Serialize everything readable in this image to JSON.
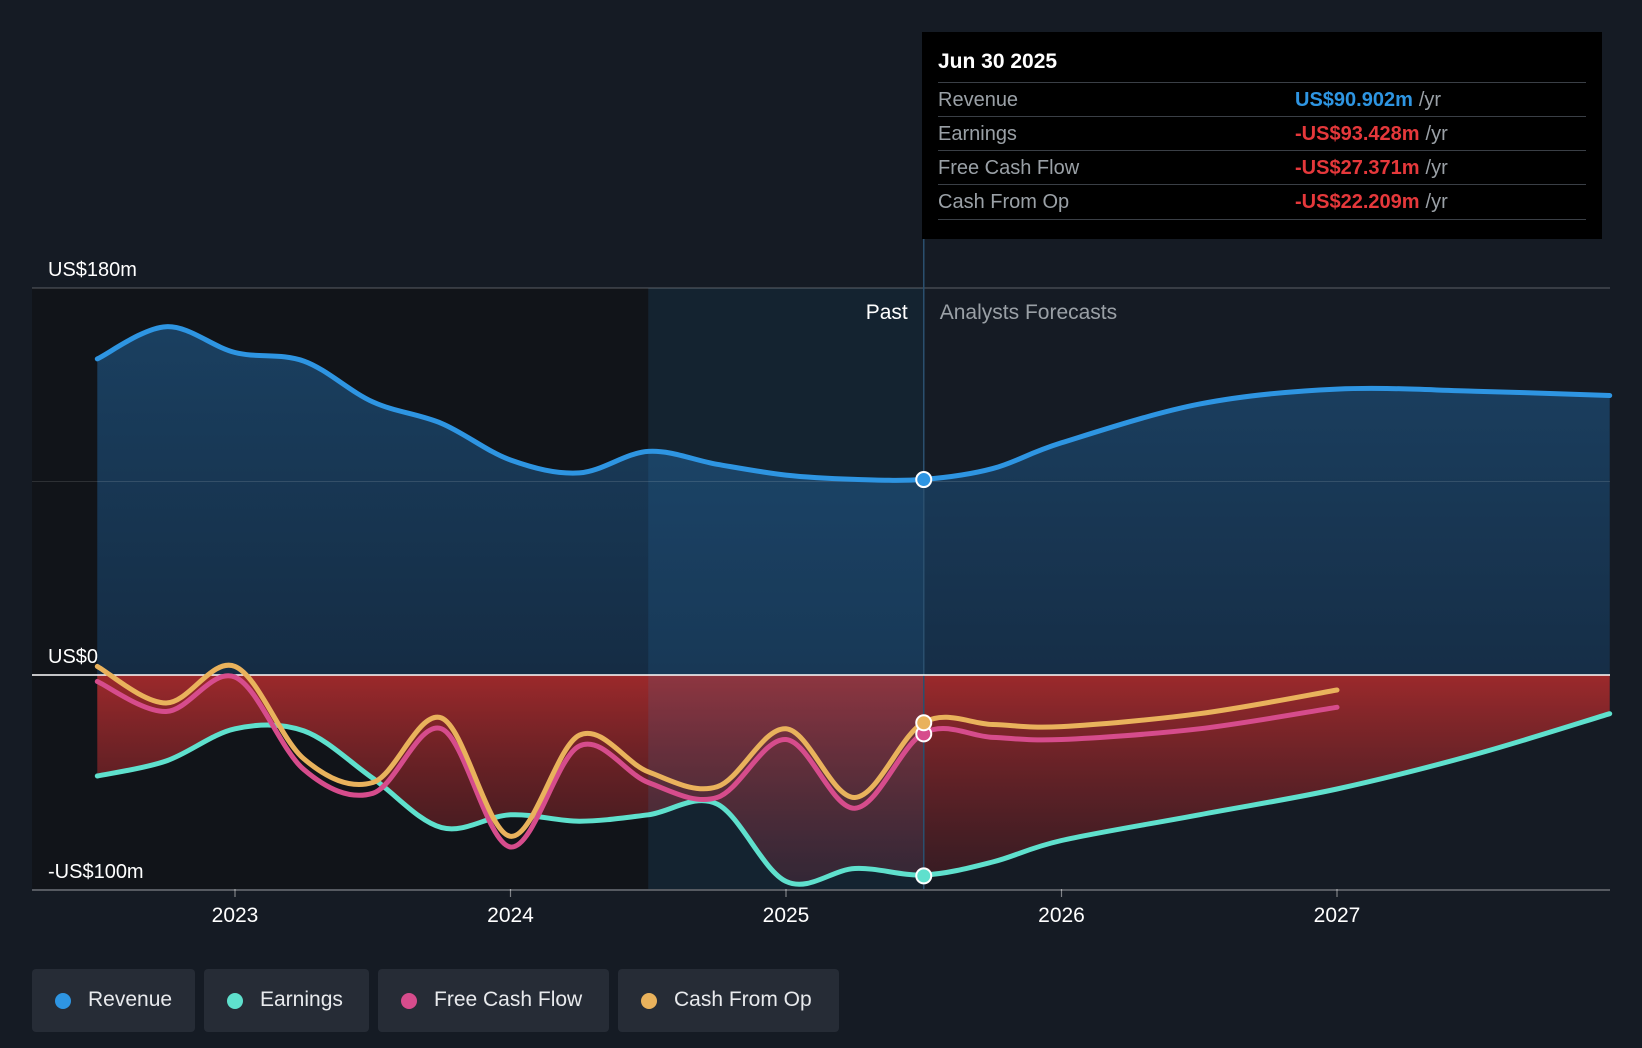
{
  "tooltip": {
    "date": "Jun 30 2025",
    "unit": "/yr",
    "rows": [
      {
        "label": "Revenue",
        "value": "US$90.902m",
        "color": "#2e95e2"
      },
      {
        "label": "Earnings",
        "value": "-US$93.428m",
        "color": "#e5383b"
      },
      {
        "label": "Free Cash Flow",
        "value": "-US$27.371m",
        "color": "#e5383b"
      },
      {
        "label": "Cash From Op",
        "value": "-US$22.209m",
        "color": "#e5383b"
      }
    ]
  },
  "legend": [
    {
      "label": "Revenue",
      "color": "#2e95e2"
    },
    {
      "label": "Earnings",
      "color": "#5fe0cd"
    },
    {
      "label": "Free Cash Flow",
      "color": "#d64c8c"
    },
    {
      "label": "Cash From Op",
      "color": "#e9b25c"
    }
  ],
  "chart_data": {
    "type": "line",
    "y_tick_labels": [
      "US$180m",
      "US$0",
      "-US$100m"
    ],
    "y_ticks": [
      180,
      0,
      -100
    ],
    "ylim": [
      -100,
      180
    ],
    "x_tick_labels": [
      "2023",
      "2024",
      "2025",
      "2026",
      "2027"
    ],
    "x_ticks": [
      2023,
      2024,
      2025,
      2026,
      2027
    ],
    "xlim": [
      2022.27,
      2027.99
    ],
    "past_label": "Past",
    "forecast_label": "Analysts Forecasts",
    "divider_x": 2025.5,
    "highlight_start_x": 2024.5,
    "grid": true,
    "series": [
      {
        "name": "Revenue",
        "color": "#2e95e2",
        "x": [
          2022.5,
          2022.75,
          2023.0,
          2023.25,
          2023.5,
          2023.75,
          2024.0,
          2024.25,
          2024.5,
          2024.75,
          2025.0,
          2025.25,
          2025.5,
          2025.75,
          2026.0,
          2026.5,
          2027.0,
          2027.5,
          2027.99
        ],
        "y": [
          147,
          162,
          150,
          146,
          127,
          117,
          100,
          94,
          104,
          98,
          93,
          91,
          91,
          96,
          108,
          126,
          133,
          132,
          130
        ]
      },
      {
        "name": "Earnings",
        "color": "#5fe0cd",
        "x": [
          2022.5,
          2022.75,
          2023.0,
          2023.25,
          2023.5,
          2023.75,
          2024.0,
          2024.25,
          2024.5,
          2024.75,
          2025.0,
          2025.25,
          2025.5,
          2025.75,
          2026.0,
          2026.5,
          2027.0,
          2027.5,
          2027.99
        ],
        "y": [
          -47,
          -40,
          -25,
          -26,
          -48,
          -71,
          -65,
          -68,
          -65,
          -60,
          -96,
          -90,
          -93,
          -87,
          -77,
          -65,
          -53,
          -37,
          -18
        ]
      },
      {
        "name": "Free Cash Flow",
        "color": "#d64c8c",
        "x": [
          2022.5,
          2022.75,
          2023.0,
          2023.25,
          2023.5,
          2023.75,
          2024.0,
          2024.25,
          2024.5,
          2024.75,
          2025.0,
          2025.25,
          2025.5,
          2025.75,
          2026.0,
          2026.5,
          2027.0
        ],
        "y": [
          -3,
          -17,
          -1,
          -44,
          -55,
          -25,
          -80,
          -33,
          -50,
          -57,
          -30,
          -62,
          -27,
          -29,
          -30,
          -25,
          -15
        ]
      },
      {
        "name": "Cash From Op",
        "color": "#e9b25c",
        "x": [
          2022.5,
          2022.75,
          2023.0,
          2023.25,
          2023.5,
          2023.75,
          2024.0,
          2024.25,
          2024.5,
          2024.75,
          2025.0,
          2025.25,
          2025.5,
          2025.75,
          2026.0,
          2026.5,
          2027.0
        ],
        "y": [
          4,
          -13,
          4,
          -39,
          -50,
          -20,
          -75,
          -28,
          -45,
          -52,
          -25,
          -57,
          -22,
          -23,
          -24,
          -18,
          -7
        ]
      }
    ],
    "highlight_points": [
      {
        "series": "Revenue",
        "x": 2025.5,
        "y": 90.902
      },
      {
        "series": "Earnings",
        "x": 2025.5,
        "y": -93.428
      },
      {
        "series": "Free Cash Flow",
        "x": 2025.5,
        "y": -27.371
      },
      {
        "series": "Cash From Op",
        "x": 2025.5,
        "y": -22.209
      }
    ]
  }
}
